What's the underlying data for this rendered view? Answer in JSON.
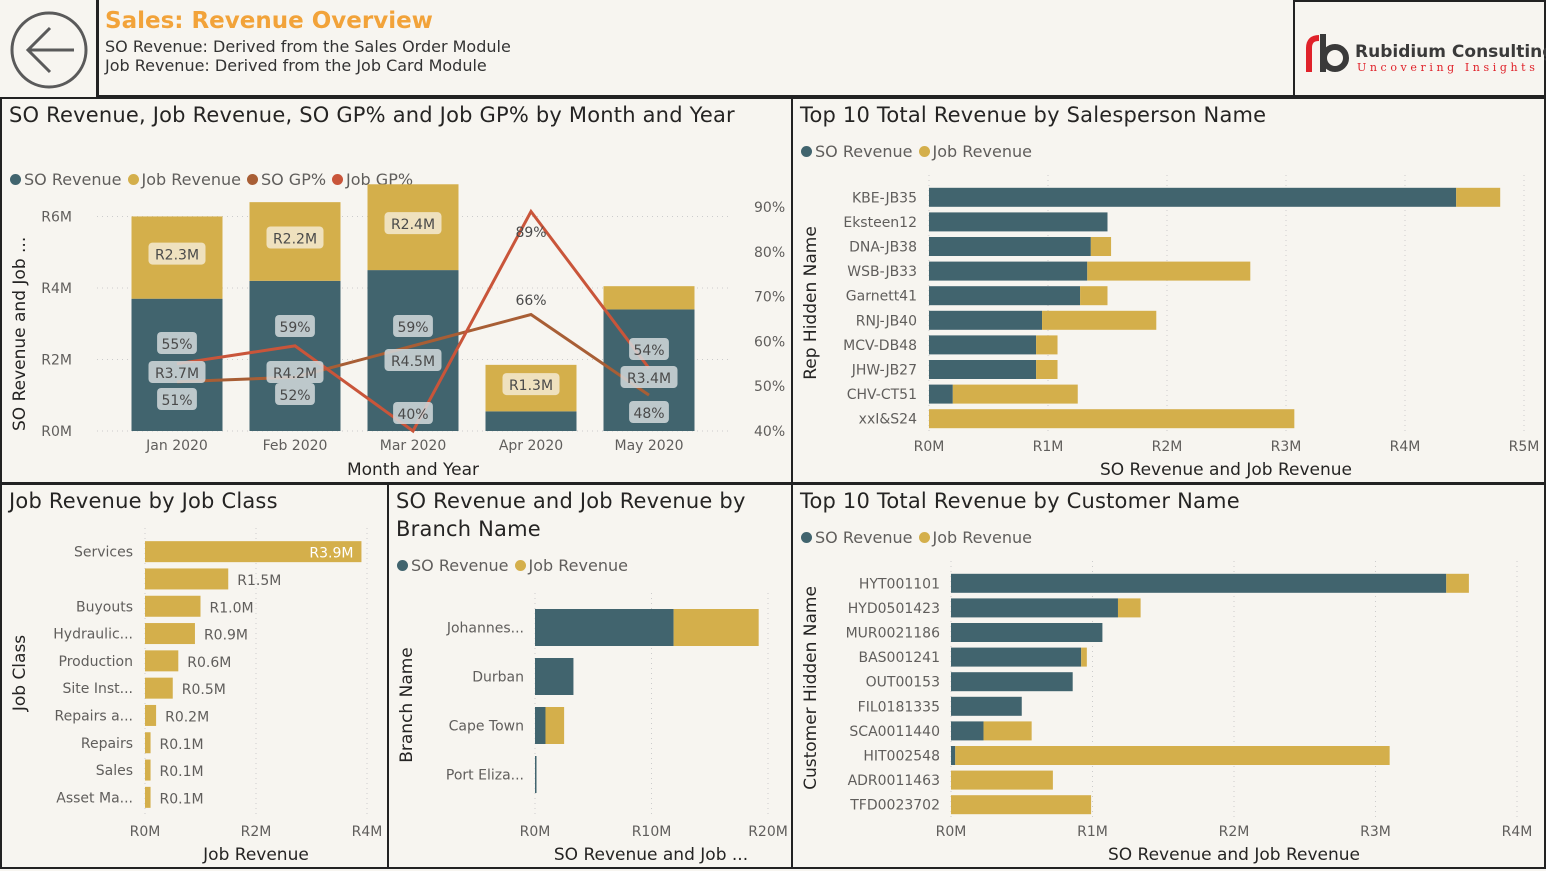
{
  "header": {
    "back_icon": "arrow-left-circle-icon",
    "title": "Sales: Revenue Overview",
    "line1": "SO Revenue: Derived from the Sales Order Module",
    "line2": "Job Revenue: Derived from the Job Card Module"
  },
  "logo": {
    "mark": "rb",
    "name": "Rubidium Consulting",
    "tagline": "Uncovering Insights"
  },
  "colors": {
    "so_revenue": "#41646e",
    "job_revenue": "#d4af4b",
    "so_gp": "#a85e35",
    "job_gp": "#c9553a",
    "title_orange": "#f2a33a",
    "logo_red": "#e0222a"
  },
  "chart_data": [
    {
      "id": "monthly",
      "type": "bar",
      "title": "SO Revenue, Job Revenue, SO GP% and Job GP% by Month and Year",
      "xlabel": "Month and Year",
      "ylabel": "SO Revenue and Job ...",
      "legend": [
        "SO Revenue",
        "Job Revenue",
        "SO GP%",
        "Job GP%"
      ],
      "legend_position": "top-left",
      "categories": [
        "Jan 2020",
        "Feb 2020",
        "Mar 2020",
        "Apr 2020",
        "May 2020"
      ],
      "y_ticks": [
        "R0M",
        "R2M",
        "R4M",
        "R6M"
      ],
      "ylim": [
        0,
        6.6
      ],
      "y2_ticks": [
        "40%",
        "50%",
        "60%",
        "70%",
        "80%",
        "90%"
      ],
      "y2lim": [
        40,
        90
      ],
      "series": [
        {
          "name": "SO Revenue",
          "kind": "bar",
          "values": [
            3.7,
            4.2,
            4.5,
            0.55,
            3.4
          ],
          "labels": [
            "R3.7M",
            "R4.2M",
            "R4.5M",
            "",
            "R3.4M"
          ]
        },
        {
          "name": "Job Revenue",
          "kind": "bar",
          "values": [
            2.3,
            2.2,
            2.4,
            1.3,
            0.65
          ],
          "labels": [
            "R2.3M",
            "R2.2M",
            "R2.4M",
            "R1.3M",
            ""
          ]
        },
        {
          "name": "SO GP%",
          "kind": "line",
          "values": [
            51,
            52,
            59,
            66,
            48
          ],
          "labels": [
            "51%",
            "52%",
            "59%",
            "66%",
            "48%"
          ]
        },
        {
          "name": "Job GP%",
          "kind": "line",
          "values": [
            55,
            59,
            40,
            89,
            54
          ],
          "labels": [
            "55%",
            "59%",
            "40%",
            "89%",
            "54%"
          ]
        }
      ]
    },
    {
      "id": "salesperson",
      "type": "bar",
      "orientation": "horizontal",
      "title": "Top 10 Total Revenue by Salesperson Name",
      "xlabel": "SO Revenue and Job Revenue",
      "ylabel": "Rep Hidden Name",
      "legend": [
        "SO Revenue",
        "Job Revenue"
      ],
      "legend_position": "top-left",
      "categories": [
        "KBE-JB35",
        "Eksteen12",
        "DNA-JB38",
        "WSB-JB33",
        "Garnett41",
        "RNJ-JB40",
        "MCV-DB48",
        "JHW-JB27",
        "CHV-CT51",
        "xxI&S24"
      ],
      "x_ticks": [
        "R0M",
        "R1M",
        "R2M",
        "R3M",
        "R4M",
        "R5M"
      ],
      "xlim": [
        0,
        5
      ],
      "series": [
        {
          "name": "SO Revenue",
          "values": [
            4.43,
            1.5,
            1.36,
            1.33,
            1.27,
            0.95,
            0.9,
            0.9,
            0.2,
            0
          ]
        },
        {
          "name": "Job Revenue",
          "values": [
            0.37,
            0.0,
            0.17,
            1.37,
            0.23,
            0.96,
            0.18,
            0.18,
            1.05,
            3.07
          ]
        }
      ]
    },
    {
      "id": "jobclass",
      "type": "bar",
      "orientation": "horizontal",
      "title": "Job Revenue by Job Class",
      "xlabel": "Job Revenue",
      "ylabel": "Job Class",
      "categories": [
        "Services",
        "",
        "Buyouts",
        "Hydraulic...",
        "Production",
        "Site Inst...",
        "Repairs a...",
        "Repairs",
        "Sales",
        "Asset Ma..."
      ],
      "x_ticks": [
        "R0M",
        "R2M",
        "R4M"
      ],
      "xlim": [
        0,
        4
      ],
      "series": [
        {
          "name": "Job Revenue",
          "values": [
            3.9,
            1.5,
            1.0,
            0.9,
            0.6,
            0.5,
            0.2,
            0.1,
            0.1,
            0.1
          ],
          "labels": [
            "R3.9M",
            "R1.5M",
            "R1.0M",
            "R0.9M",
            "R0.6M",
            "R0.5M",
            "R0.2M",
            "R0.1M",
            "R0.1M",
            "R0.1M"
          ]
        }
      ]
    },
    {
      "id": "branch",
      "type": "bar",
      "orientation": "horizontal",
      "title": "SO Revenue and Job Revenue by Branch Name",
      "xlabel": "SO Revenue and Job ...",
      "ylabel": "Branch Name",
      "legend": [
        "SO Revenue",
        "Job Revenue"
      ],
      "legend_position": "top-left",
      "categories": [
        "Johannes...",
        "Durban",
        "Cape Town",
        "Port Eliza..."
      ],
      "x_ticks": [
        "R0M",
        "R10M",
        "R20M"
      ],
      "xlim": [
        0,
        20
      ],
      "series": [
        {
          "name": "SO Revenue",
          "values": [
            11.9,
            3.3,
            0.9,
            0.05
          ]
        },
        {
          "name": "Job Revenue",
          "values": [
            7.3,
            0.0,
            1.6,
            0.0
          ]
        }
      ]
    },
    {
      "id": "customer",
      "type": "bar",
      "orientation": "horizontal",
      "title": "Top 10 Total Revenue by Customer Name",
      "xlabel": "SO Revenue and Job Revenue",
      "ylabel": "Customer Hidden Name",
      "legend": [
        "SO Revenue",
        "Job Revenue"
      ],
      "legend_position": "top-left",
      "categories": [
        "HYT001101",
        "HYD0501423",
        "MUR0021186",
        "BAS001241",
        "OUT00153",
        "FIL0181335",
        "SCA0011440",
        "HIT002548",
        "ADR0011463",
        "TFD0023702"
      ],
      "x_ticks": [
        "R0M",
        "R1M",
        "R2M",
        "R3M",
        "R4M"
      ],
      "xlim": [
        0,
        4
      ],
      "series": [
        {
          "name": "SO Revenue",
          "values": [
            3.5,
            1.18,
            1.07,
            0.92,
            0.86,
            0.5,
            0.23,
            0.03,
            0,
            0
          ]
        },
        {
          "name": "Job Revenue",
          "values": [
            0.16,
            0.16,
            0.0,
            0.04,
            0.0,
            0.0,
            0.34,
            3.07,
            0.72,
            0.99
          ]
        }
      ]
    }
  ]
}
